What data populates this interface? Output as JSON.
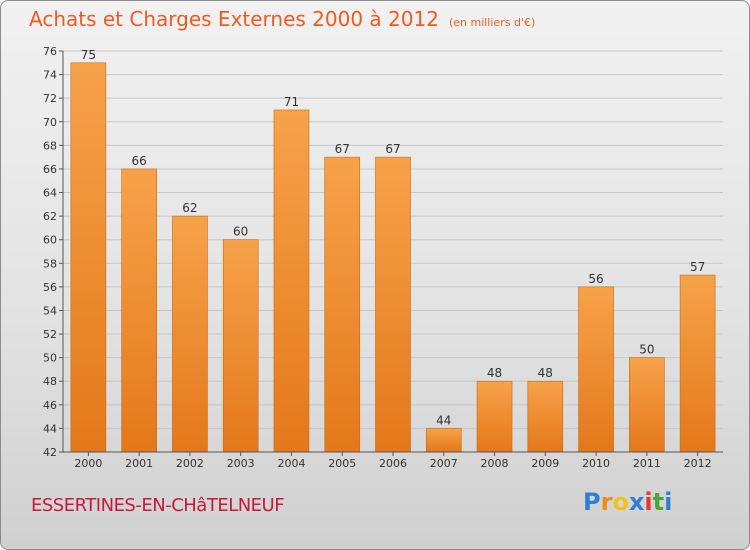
{
  "header": {
    "title": "Achats et Charges Externes 2000 à 2012",
    "unit": "(en milliers d'€)"
  },
  "footer": {
    "commune": "ESSERTINES-EN-CHâTELNEUF",
    "brand": [
      "P",
      "r",
      "o",
      "x",
      "i",
      "t",
      "i"
    ],
    "brand_colors": [
      "#2f7fd0",
      "#f08b1c",
      "#f0c21c",
      "#2f7fd0",
      "#e8362f",
      "#4aa63a",
      "#2f7fd0"
    ]
  },
  "colors": {
    "title": "#ef5a1f",
    "bar_light": "#f7a24a",
    "bar_dark": "#e4781a",
    "commune": "#c8183d"
  },
  "chart_data": {
    "type": "bar",
    "title": "Achats et Charges Externes 2000 à 2012",
    "subtitle": "(en milliers d'€)",
    "categories": [
      "2000",
      "2001",
      "2002",
      "2003",
      "2004",
      "2005",
      "2006",
      "2007",
      "2008",
      "2009",
      "2010",
      "2011",
      "2012"
    ],
    "values": [
      75,
      66,
      62,
      60,
      71,
      67,
      67,
      44,
      48,
      48,
      56,
      50,
      57
    ],
    "ylim": [
      42,
      76
    ],
    "yticks": [
      42,
      44,
      46,
      48,
      50,
      52,
      54,
      56,
      58,
      60,
      62,
      64,
      66,
      68,
      70,
      72,
      74,
      76
    ],
    "grid": true,
    "data_labels": true
  }
}
